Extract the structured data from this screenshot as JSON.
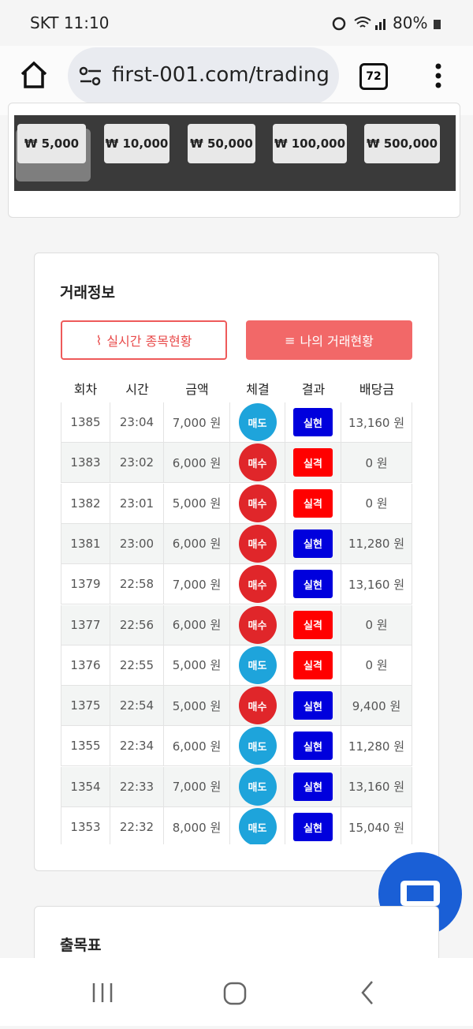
{
  "status_bar": {
    "carrier_time": "SKT 11:10",
    "battery": "80%"
  },
  "browser": {
    "url": "first-001.com/trading",
    "tab_count": "72"
  },
  "amount_buttons": [
    "₩ 5,000",
    "₩ 10,000",
    "₩ 50,000",
    "₩ 100,000",
    "₩ 500,000"
  ],
  "trade_info": {
    "title": "거래정보",
    "tabs": [
      "실시간 종목현황",
      "나의 거래현황"
    ],
    "table": {
      "headers": [
        "회차",
        "시간",
        "금액",
        "체결",
        "결과",
        "배당금"
      ],
      "rows": [
        {
          "round": "1385",
          "time": "23:04",
          "amount": "7,000 원",
          "side": "매도",
          "side_color": "#1ea4db",
          "result": "실현",
          "result_color": "#0000dd",
          "payout": "13,160 원"
        },
        {
          "round": "1383",
          "time": "23:02",
          "amount": "6,000 원",
          "side": "매수",
          "side_color": "#e0262a",
          "result": "실격",
          "result_color": "#ff0000",
          "payout": "0 원"
        },
        {
          "round": "1382",
          "time": "23:01",
          "amount": "5,000 원",
          "side": "매수",
          "side_color": "#e0262a",
          "result": "실격",
          "result_color": "#ff0000",
          "payout": "0 원"
        },
        {
          "round": "1381",
          "time": "23:00",
          "amount": "6,000 원",
          "side": "매수",
          "side_color": "#e0262a",
          "result": "실현",
          "result_color": "#0000dd",
          "payout": "11,280 원"
        },
        {
          "round": "1379",
          "time": "22:58",
          "amount": "7,000 원",
          "side": "매수",
          "side_color": "#e0262a",
          "result": "실현",
          "result_color": "#0000dd",
          "payout": "13,160 원"
        },
        {
          "round": "1377",
          "time": "22:56",
          "amount": "6,000 원",
          "side": "매수",
          "side_color": "#e0262a",
          "result": "실격",
          "result_color": "#ff0000",
          "payout": "0 원"
        },
        {
          "round": "1376",
          "time": "22:55",
          "amount": "5,000 원",
          "side": "매도",
          "side_color": "#1ea4db",
          "result": "실격",
          "result_color": "#ff0000",
          "payout": "0 원"
        },
        {
          "round": "1375",
          "time": "22:54",
          "amount": "5,000 원",
          "side": "매수",
          "side_color": "#e0262a",
          "result": "실현",
          "result_color": "#0000dd",
          "payout": "9,400 원"
        },
        {
          "round": "1355",
          "time": "22:34",
          "amount": "6,000 원",
          "side": "매도",
          "side_color": "#1ea4db",
          "result": "실현",
          "result_color": "#0000dd",
          "payout": "11,280 원"
        },
        {
          "round": "1354",
          "time": "22:33",
          "amount": "7,000 원",
          "side": "매도",
          "side_color": "#1ea4db",
          "result": "실현",
          "result_color": "#0000dd",
          "payout": "13,160 원"
        },
        {
          "round": "1353",
          "time": "22:32",
          "amount": "8,000 원",
          "side": "매도",
          "side_color": "#1ea4db",
          "result": "실현",
          "result_color": "#0000dd",
          "payout": "15,040 원"
        }
      ]
    }
  },
  "next_section": {
    "title": "출목표"
  }
}
